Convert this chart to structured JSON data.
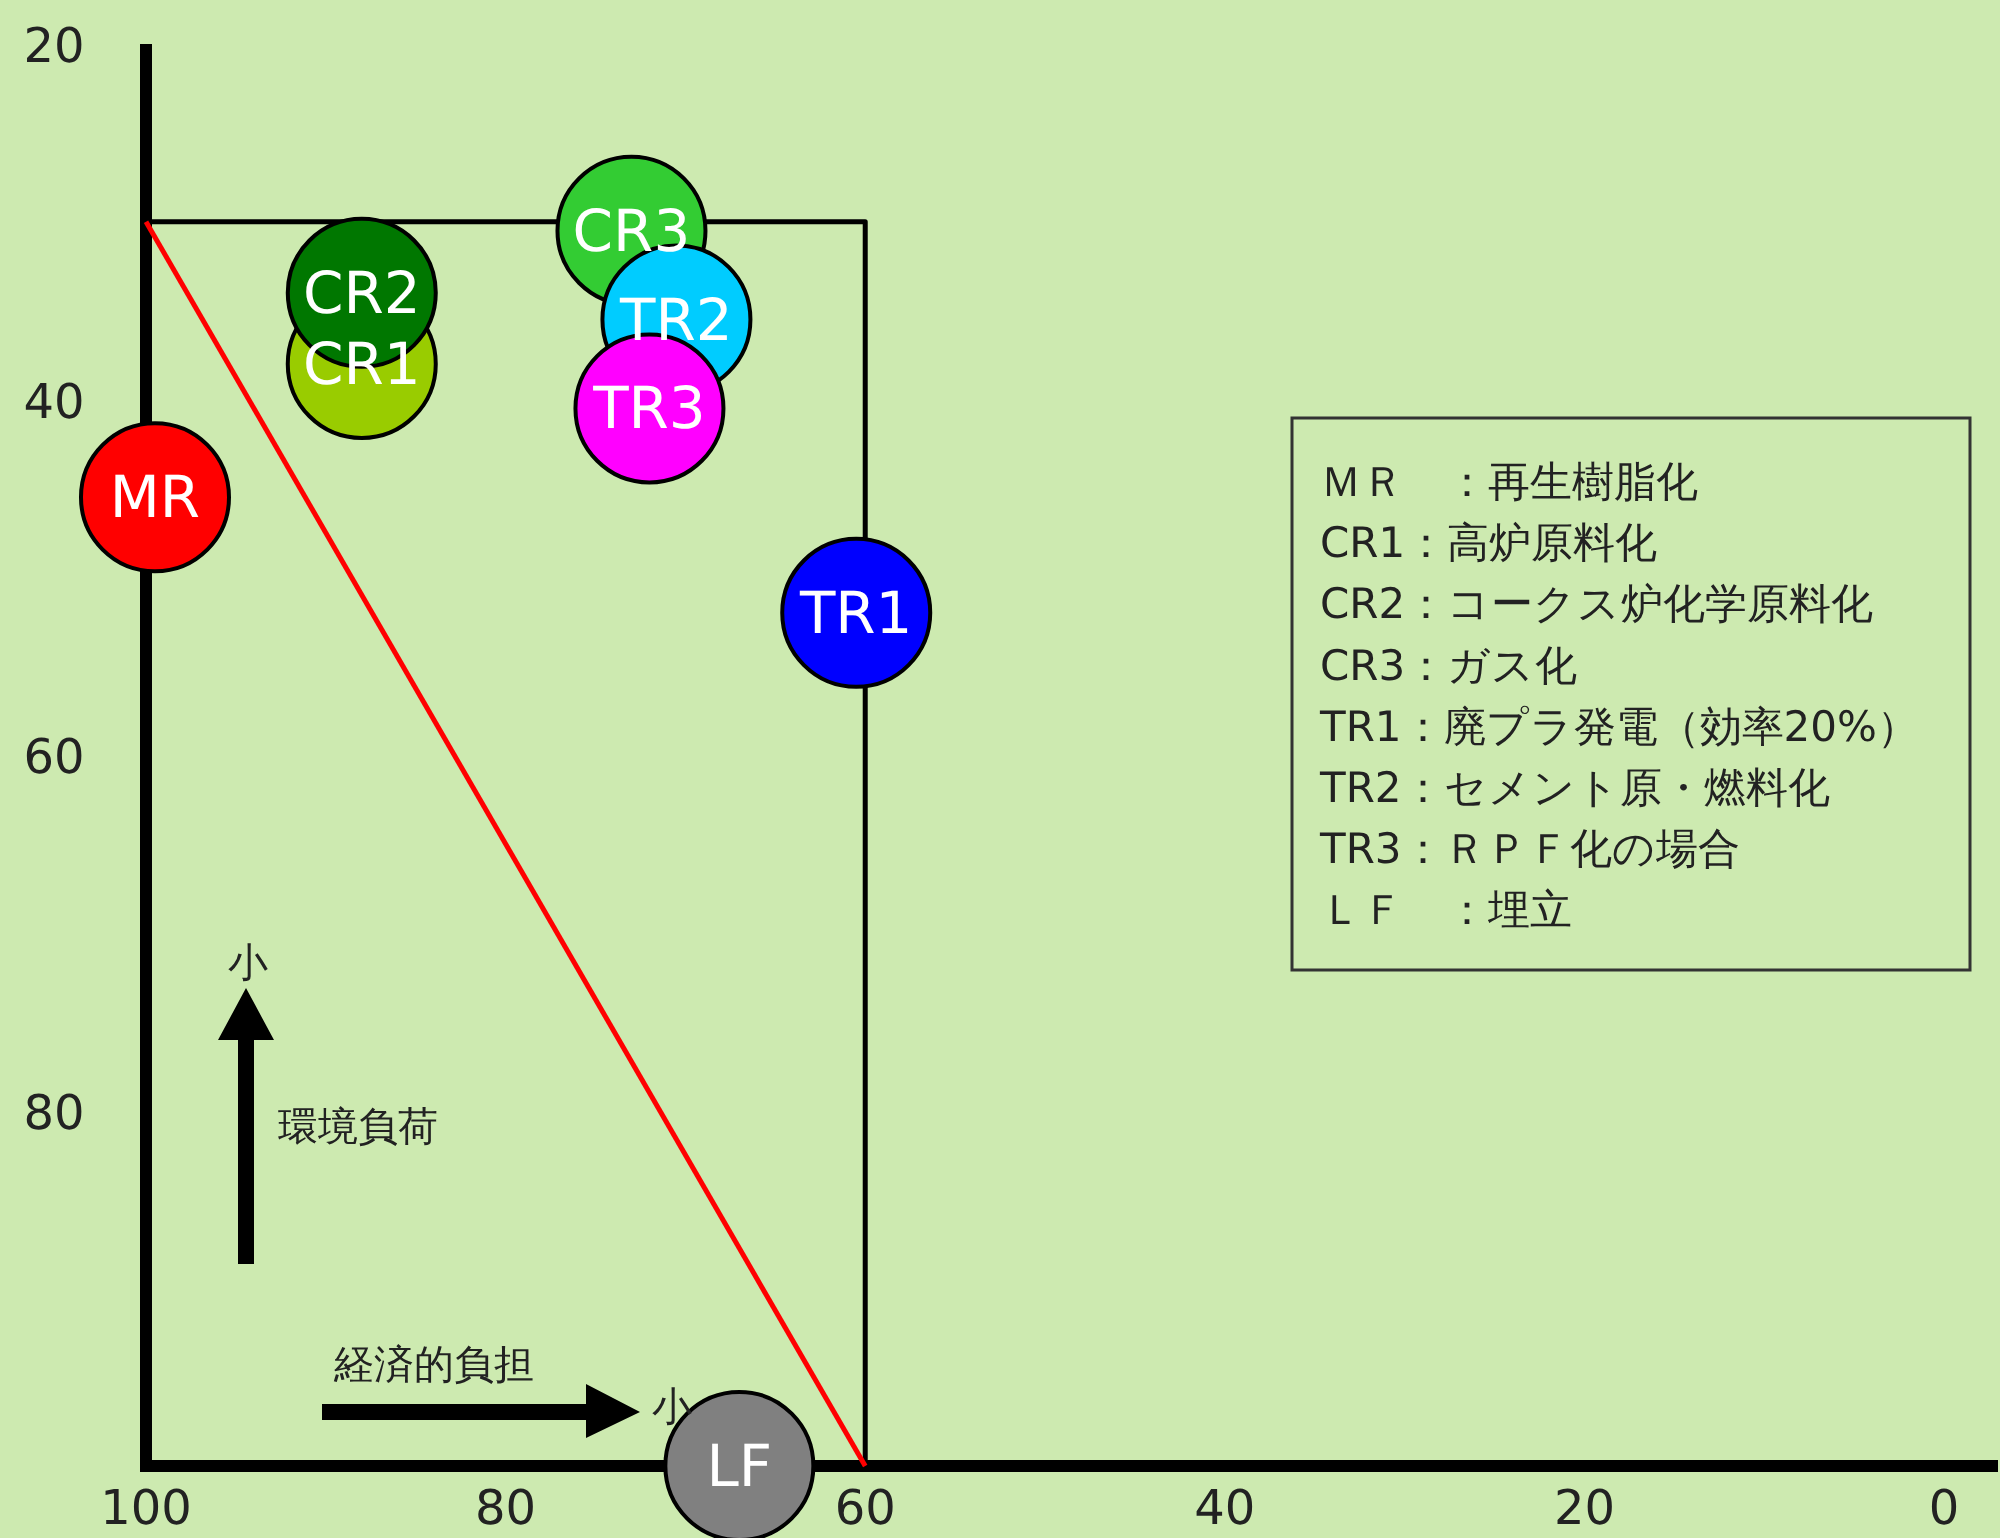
{
  "chart_data": {
    "type": "scatter",
    "xlim": [
      100,
      -3
    ],
    "ylim": [
      100,
      20
    ],
    "xticks": [
      100,
      80,
      60,
      40,
      20,
      0
    ],
    "yticks": [
      20,
      40,
      60,
      80
    ],
    "series": [
      {
        "type": "line",
        "color": "#000000",
        "x": [
          100,
          60,
          60
        ],
        "values": [
          30,
          30,
          100
        ]
      },
      {
        "type": "line",
        "color": "#ff0000",
        "x": [
          100,
          60
        ],
        "values": [
          30,
          100
        ]
      },
      {
        "name": "MR",
        "color": "#ff0000",
        "marker": "circle",
        "x": [
          99.5
        ],
        "values": [
          45.5
        ]
      },
      {
        "name": "CR1",
        "color": "#99cc00",
        "marker": "circle",
        "x": [
          88
        ],
        "values": [
          38
        ]
      },
      {
        "name": "CR2",
        "color": "#007700",
        "marker": "circle",
        "x": [
          88
        ],
        "values": [
          34
        ]
      },
      {
        "name": "CR3",
        "color": "#33cc33",
        "marker": "circle",
        "x": [
          73
        ],
        "values": [
          30.5
        ]
      },
      {
        "name": "TR2",
        "color": "#00ccff",
        "marker": "circle",
        "x": [
          70.5
        ],
        "values": [
          35.5
        ]
      },
      {
        "name": "TR3",
        "color": "#ff00ff",
        "marker": "circle",
        "x": [
          72
        ],
        "values": [
          40.5
        ]
      },
      {
        "name": "TR1",
        "color": "#0000ff",
        "marker": "circle",
        "x": [
          60.5
        ],
        "values": [
          52
        ]
      },
      {
        "name": "LF",
        "color": "#808080",
        "marker": "circle",
        "x": [
          67
        ],
        "values": [
          100
        ]
      }
    ],
    "annotations": [
      "ＭＲ　：再生樹脂化",
      "CR1：高炉原料化",
      "CR2：コークス炉化学原料化",
      "CR3：ガス化",
      "TR1：廃プラ発電（効率20%）",
      "TR2：セメント原・燃料化",
      "TR3：ＲＰＦ化の場合",
      "ＬＦ　：埋立",
      "小",
      "環境負荷",
      "経済的負担",
      "小"
    ]
  }
}
